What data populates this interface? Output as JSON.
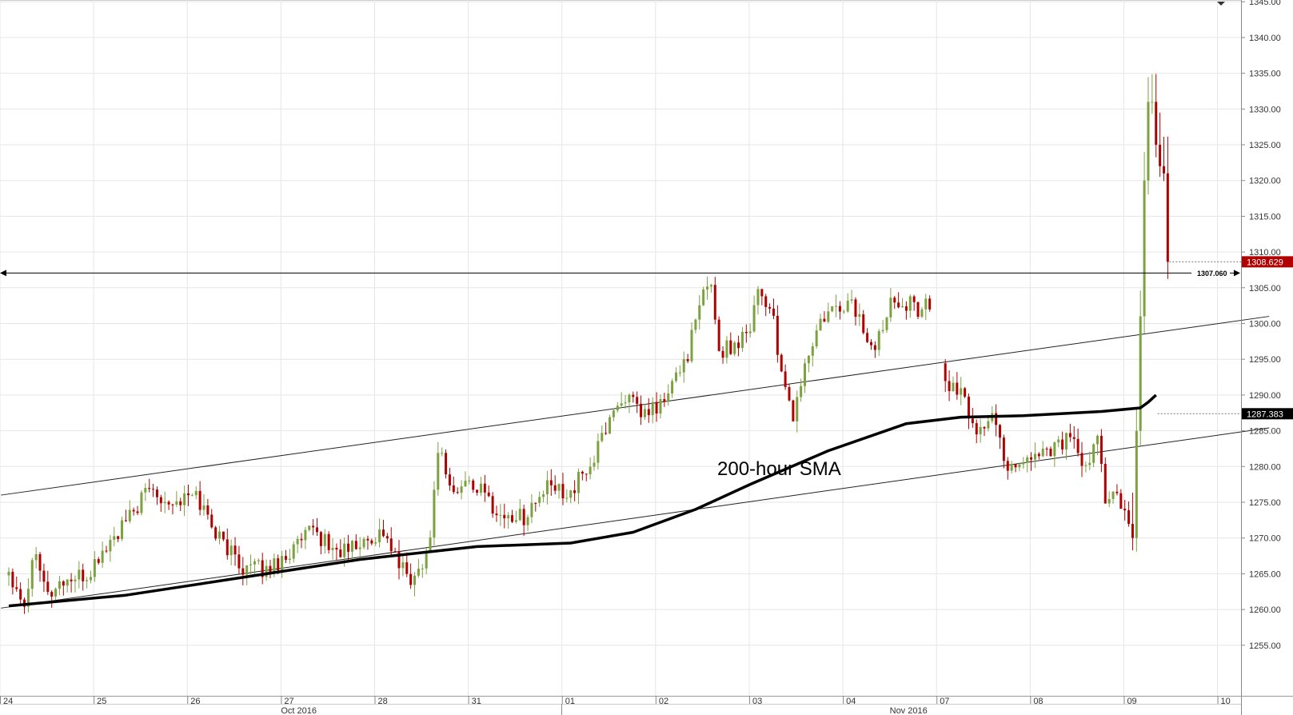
{
  "chart_data": {
    "type": "candlestick",
    "title": "",
    "ylim": [
      1250.5,
      1347
    ],
    "y_ticks": [
      1255,
      1260,
      1265,
      1270,
      1275,
      1280,
      1285,
      1290,
      1295,
      1300,
      1305,
      1310,
      1315,
      1320,
      1325,
      1330,
      1335,
      1340,
      1345
    ],
    "y_tick_labels": [
      "1255.00",
      "1260.00",
      "1265.00",
      "1270.00",
      "1275.00",
      "1280.00",
      "1285.00",
      "1290.00",
      "1295.00",
      "1300.00",
      "1305.00",
      "1310.00",
      "1315.00",
      "1320.00",
      "1325.00",
      "1330.00",
      "1335.00",
      "1340.00",
      "1345.00"
    ],
    "day_labels": [
      {
        "label": "24",
        "bar": 0
      },
      {
        "label": "25",
        "bar": 24
      },
      {
        "label": "26",
        "bar": 48
      },
      {
        "label": "27",
        "bar": 72
      },
      {
        "label": "28",
        "bar": 96
      },
      {
        "label": "31",
        "bar": 120
      },
      {
        "label": "01",
        "bar": 144
      },
      {
        "label": "02",
        "bar": 168
      },
      {
        "label": "03",
        "bar": 192
      },
      {
        "label": "04",
        "bar": 216
      },
      {
        "label": "07",
        "bar": 240
      },
      {
        "label": "08",
        "bar": 264
      },
      {
        "label": "09",
        "bar": 288
      },
      {
        "label": "10",
        "bar": 312
      }
    ],
    "months": [
      {
        "label": "Oct 2016",
        "bar": 72
      },
      {
        "label": "Nov 2016",
        "bar": 228
      }
    ],
    "month_divider_bar": 142,
    "anchors": [
      {
        "bar": 0,
        "price": 1265.5
      },
      {
        "bar": 4,
        "price": 1261
      },
      {
        "bar": 7,
        "price": 1269
      },
      {
        "bar": 10,
        "price": 1262
      },
      {
        "bar": 14,
        "price": 1264
      },
      {
        "bar": 20,
        "price": 1264.5
      },
      {
        "bar": 24,
        "price": 1268
      },
      {
        "bar": 30,
        "price": 1272
      },
      {
        "bar": 36,
        "price": 1277
      },
      {
        "bar": 42,
        "price": 1275
      },
      {
        "bar": 48,
        "price": 1276
      },
      {
        "bar": 54,
        "price": 1270
      },
      {
        "bar": 60,
        "price": 1266
      },
      {
        "bar": 66,
        "price": 1265.5
      },
      {
        "bar": 72,
        "price": 1268
      },
      {
        "bar": 78,
        "price": 1271
      },
      {
        "bar": 84,
        "price": 1268
      },
      {
        "bar": 90,
        "price": 1269
      },
      {
        "bar": 96,
        "price": 1271
      },
      {
        "bar": 100,
        "price": 1266
      },
      {
        "bar": 104,
        "price": 1264
      },
      {
        "bar": 108,
        "price": 1270
      },
      {
        "bar": 110,
        "price": 1283
      },
      {
        "bar": 114,
        "price": 1276
      },
      {
        "bar": 118,
        "price": 1278
      },
      {
        "bar": 122,
        "price": 1276
      },
      {
        "bar": 126,
        "price": 1273
      },
      {
        "bar": 132,
        "price": 1273
      },
      {
        "bar": 138,
        "price": 1277
      },
      {
        "bar": 144,
        "price": 1276.5
      },
      {
        "bar": 150,
        "price": 1281
      },
      {
        "bar": 154,
        "price": 1287
      },
      {
        "bar": 158,
        "price": 1290
      },
      {
        "bar": 162,
        "price": 1287
      },
      {
        "bar": 168,
        "price": 1289
      },
      {
        "bar": 174,
        "price": 1296
      },
      {
        "bar": 178,
        "price": 1304
      },
      {
        "bar": 180,
        "price": 1306
      },
      {
        "bar": 182,
        "price": 1296
      },
      {
        "bar": 186,
        "price": 1297
      },
      {
        "bar": 190,
        "price": 1300
      },
      {
        "bar": 192,
        "price": 1305
      },
      {
        "bar": 196,
        "price": 1301
      },
      {
        "bar": 198,
        "price": 1292
      },
      {
        "bar": 201,
        "price": 1287
      },
      {
        "bar": 204,
        "price": 1294
      },
      {
        "bar": 208,
        "price": 1300
      },
      {
        "bar": 212,
        "price": 1302
      },
      {
        "bar": 216,
        "price": 1303
      },
      {
        "bar": 220,
        "price": 1298
      },
      {
        "bar": 222,
        "price": 1296
      },
      {
        "bar": 226,
        "price": 1304
      },
      {
        "bar": 230,
        "price": 1303
      },
      {
        "bar": 233,
        "price": 1302
      },
      {
        "bar": 235,
        "price": 1303.5
      },
      {
        "bar": 240,
        "price": 1292
      },
      {
        "bar": 244,
        "price": 1290
      },
      {
        "bar": 248,
        "price": 1285
      },
      {
        "bar": 252,
        "price": 1287
      },
      {
        "bar": 256,
        "price": 1280
      },
      {
        "bar": 260,
        "price": 1281
      },
      {
        "bar": 264,
        "price": 1282
      },
      {
        "bar": 268,
        "price": 1283
      },
      {
        "bar": 272,
        "price": 1284
      },
      {
        "bar": 276,
        "price": 1279
      },
      {
        "bar": 279,
        "price": 1284
      },
      {
        "bar": 281,
        "price": 1276
      },
      {
        "bar": 284,
        "price": 1276
      },
      {
        "bar": 287,
        "price": 1271
      },
      {
        "bar": 288,
        "price": 1270
      },
      {
        "bar": 289,
        "price": 1285
      },
      {
        "bar": 290,
        "price": 1301
      },
      {
        "bar": 291,
        "price": 1320
      },
      {
        "bar": 292,
        "price": 1331
      },
      {
        "bar": 293,
        "price": 1331
      },
      {
        "bar": 294,
        "price": 1325
      },
      {
        "bar": 295,
        "price": 1322
      },
      {
        "bar": 296,
        "price": 1321
      },
      {
        "bar": 297,
        "price": 1308.6
      }
    ],
    "series": [
      {
        "name": "200-hour SMA",
        "points": [
          [
            0,
            1260.5
          ],
          [
            30,
            1262
          ],
          [
            60,
            1264.5
          ],
          [
            90,
            1267
          ],
          [
            120,
            1268.8
          ],
          [
            144,
            1269.3
          ],
          [
            160,
            1270.8
          ],
          [
            176,
            1274
          ],
          [
            190,
            1277.5
          ],
          [
            210,
            1282.2
          ],
          [
            230,
            1286
          ],
          [
            244,
            1286.9
          ],
          [
            260,
            1287.1
          ],
          [
            280,
            1287.7
          ],
          [
            290,
            1288.2
          ],
          [
            292,
            1289
          ],
          [
            294,
            1290
          ]
        ]
      }
    ],
    "trendlines": [
      {
        "name": "upper-channel",
        "from": [
          -2,
          1276
        ],
        "to": [
          323,
          1301
        ]
      },
      {
        "name": "lower-channel",
        "from": [
          -2,
          1260.2
        ],
        "to": [
          323,
          1285.4
        ]
      }
    ],
    "horizontal_level": {
      "price": 1307.06,
      "label": "1307.060"
    },
    "last_price": {
      "price": 1308.629,
      "label": "1308.629",
      "color": "#b00000"
    },
    "sma_last": {
      "price": 1287.383,
      "label": "1287.383",
      "color": "#000000"
    },
    "annotation": "200-hour SMA",
    "colors": {
      "up": "#7ba23f",
      "down": "#b00000",
      "grid": "#e6e6e6"
    },
    "grid": true
  }
}
